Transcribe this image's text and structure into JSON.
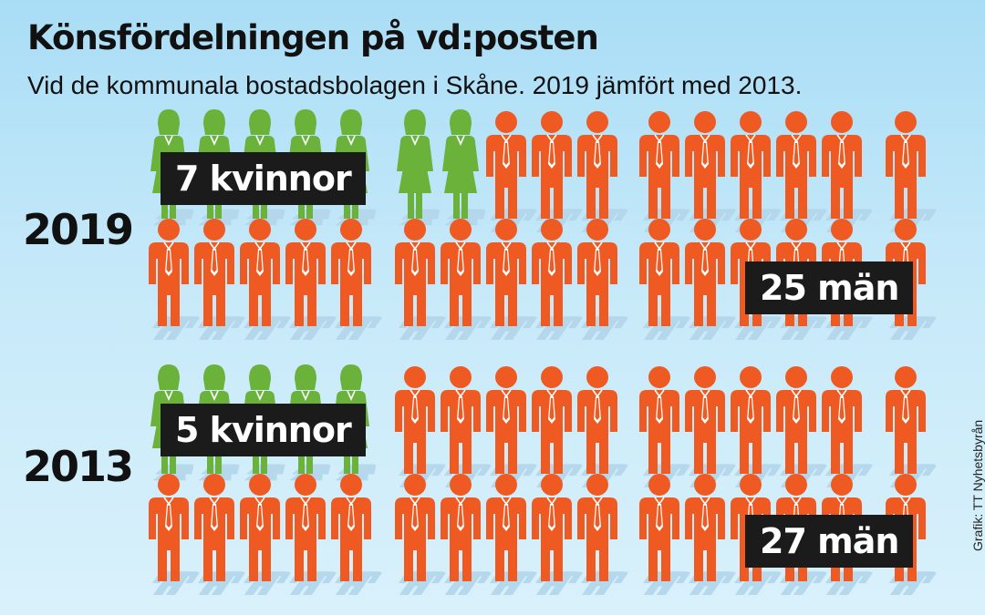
{
  "title": "Könsfördelningen på vd:posten",
  "subtitle": "Vid de kommunala bostadsbolagen i Skåne. 2019 jämfört med 2013.",
  "credit": "Grafik: TT Nyhetsbyrån",
  "colors": {
    "women": "#6ab23a",
    "men": "#ee5a22",
    "label_bg": "#1b1b1b",
    "shadow": "#b3d5ea"
  },
  "chart_data": {
    "type": "pictogram",
    "title": "Könsfördelningen på vd:posten",
    "subtitle": "Vid de kommunala bostadsbolagen i Skåne. 2019 jämfört med 2013.",
    "series": [
      "kvinnor",
      "män"
    ],
    "groups": [
      {
        "year": "2019",
        "women": 7,
        "men": 25,
        "women_label": "7 kvinnor",
        "men_label": "25 män"
      },
      {
        "year": "2013",
        "women": 5,
        "men": 27,
        "women_label": "5 kvinnor",
        "men_label": "27 män"
      }
    ]
  }
}
